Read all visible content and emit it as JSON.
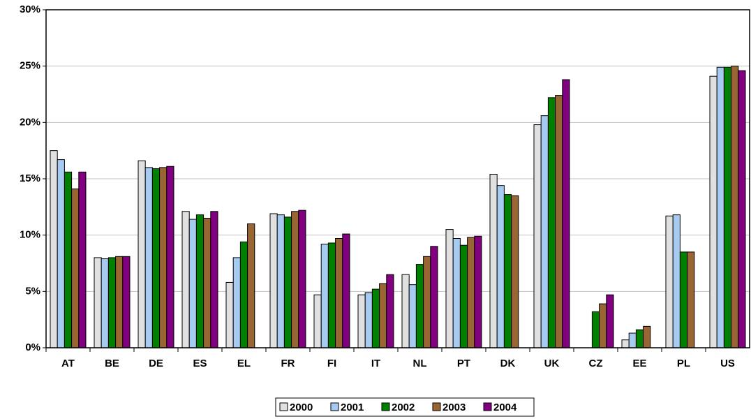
{
  "chart_data": {
    "type": "bar",
    "categories": [
      "AT",
      "BE",
      "DE",
      "ES",
      "EL",
      "FR",
      "FI",
      "IT",
      "NL",
      "PT",
      "DK",
      "UK",
      "CZ",
      "EE",
      "PL",
      "US"
    ],
    "series": [
      {
        "name": "2000",
        "color": "#e0e0e0",
        "values": [
          17.5,
          8.0,
          16.6,
          12.1,
          5.8,
          11.9,
          4.7,
          4.7,
          6.5,
          10.5,
          15.4,
          19.8,
          null,
          0.7,
          11.7,
          24.1
        ]
      },
      {
        "name": "2001",
        "color": "#a6caf0",
        "values": [
          16.7,
          7.9,
          16.0,
          11.4,
          8.0,
          11.8,
          9.2,
          4.9,
          5.6,
          9.7,
          14.4,
          20.6,
          null,
          1.3,
          11.8,
          24.9
        ]
      },
      {
        "name": "2002",
        "color": "#008000",
        "values": [
          15.6,
          8.0,
          15.9,
          11.8,
          9.4,
          11.6,
          9.3,
          5.2,
          7.4,
          9.1,
          13.6,
          22.2,
          3.2,
          1.6,
          8.5,
          24.9
        ]
      },
      {
        "name": "2003",
        "color": "#996633",
        "values": [
          14.1,
          8.1,
          16.0,
          11.5,
          11.0,
          12.1,
          9.7,
          5.7,
          8.1,
          9.8,
          13.5,
          22.4,
          3.9,
          1.9,
          8.5,
          25.0
        ]
      },
      {
        "name": "2004",
        "color": "#800080",
        "values": [
          15.6,
          8.1,
          16.1,
          12.1,
          null,
          12.2,
          10.1,
          6.5,
          9.0,
          9.9,
          null,
          23.8,
          4.7,
          null,
          null,
          24.6
        ]
      }
    ],
    "ylim": [
      0,
      30
    ],
    "yticks": [
      {
        "value": 0,
        "label": "0%"
      },
      {
        "value": 5,
        "label": "5%"
      },
      {
        "value": 10,
        "label": "10%"
      },
      {
        "value": 15,
        "label": "15%"
      },
      {
        "value": 20,
        "label": "20%"
      },
      {
        "value": 25,
        "label": "25%"
      },
      {
        "value": 30,
        "label": "30%"
      }
    ],
    "grid": true,
    "legend": "bottom"
  }
}
